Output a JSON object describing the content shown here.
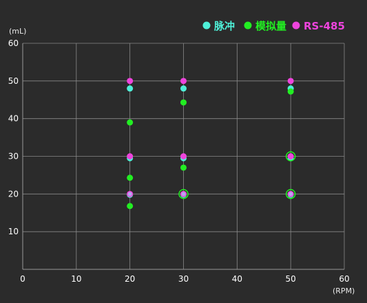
{
  "chart_data": {
    "type": "scatter",
    "xlabel": "(RPM)",
    "ylabel": "(mL)",
    "xlim": [
      0,
      60
    ],
    "ylim": [
      0,
      60
    ],
    "xticks": [
      0,
      10,
      20,
      30,
      40,
      50,
      60
    ],
    "yticks": [
      10,
      20,
      30,
      40,
      50,
      60
    ],
    "grid": true,
    "legend_position": "top-right",
    "series": [
      {
        "name": "脉冲",
        "color": "#4ef0d8",
        "points": [
          [
            20,
            48
          ],
          [
            20,
            29.5
          ],
          [
            20,
            19.8
          ],
          [
            30,
            48
          ],
          [
            30,
            29.5
          ],
          [
            30,
            19.8
          ],
          [
            50,
            48
          ],
          [
            50,
            29.5
          ],
          [
            50,
            19.8
          ]
        ]
      },
      {
        "name": "模拟量",
        "color": "#22ee22",
        "points": [
          [
            20,
            39
          ],
          [
            20,
            24.3
          ],
          [
            20,
            16.8
          ],
          [
            30,
            44.3
          ],
          [
            30,
            27
          ],
          [
            30,
            20
          ],
          [
            50,
            47.2
          ],
          [
            50,
            30
          ],
          [
            50,
            20
          ]
        ]
      },
      {
        "name": "RS-485",
        "color": "#ee44dd",
        "points": [
          [
            20,
            50
          ],
          [
            20,
            30
          ],
          [
            20,
            20
          ],
          [
            30,
            50
          ],
          [
            30,
            30
          ],
          [
            30,
            20
          ],
          [
            50,
            50
          ],
          [
            50,
            30
          ],
          [
            50,
            20
          ]
        ]
      }
    ]
  }
}
